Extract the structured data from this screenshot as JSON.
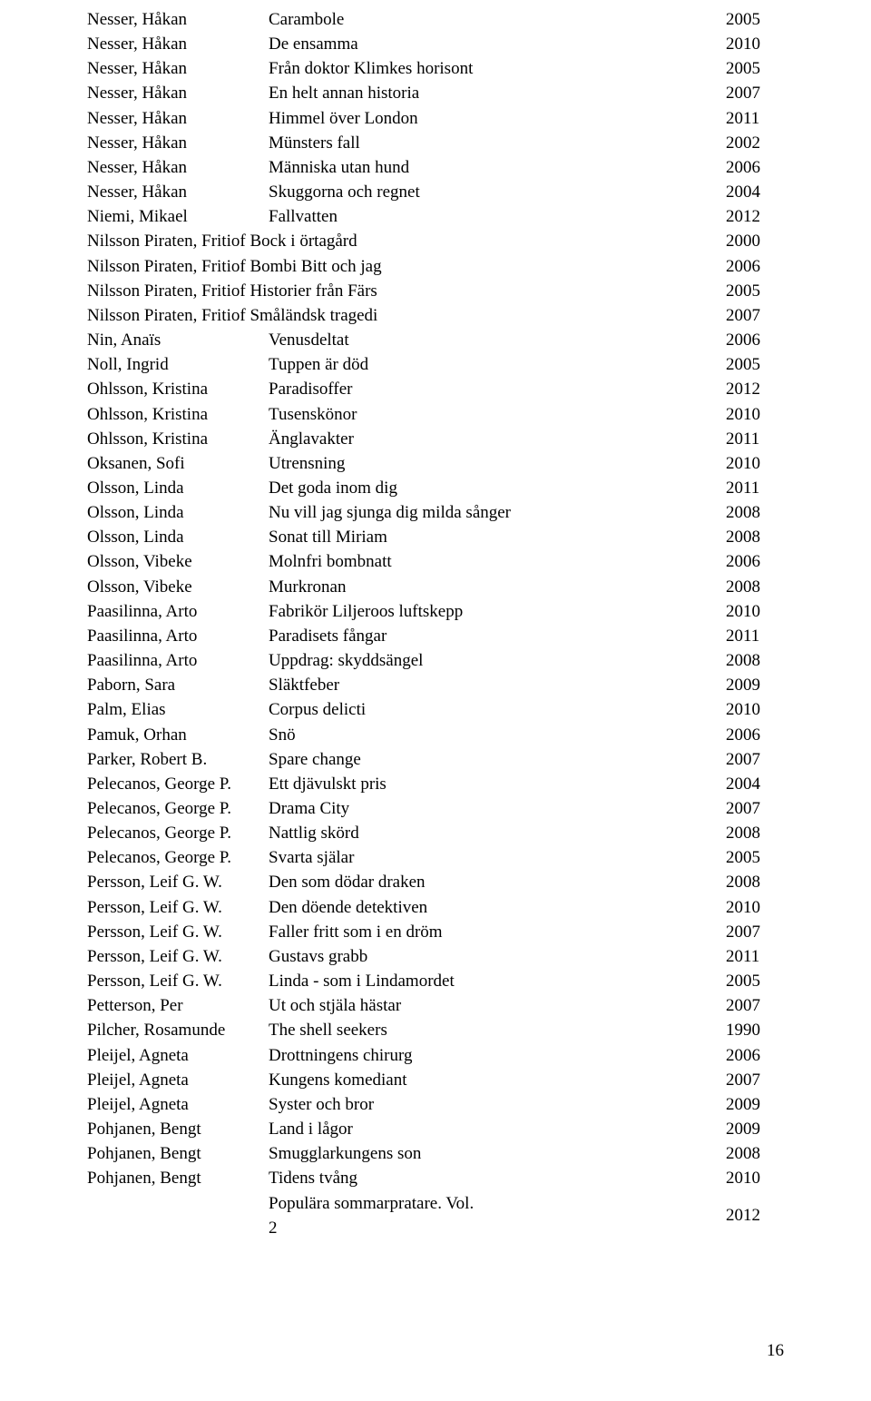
{
  "font": {
    "family": "Times New Roman",
    "size_pt": 14,
    "color": "#000000"
  },
  "background_color": "#ffffff",
  "page_number": "16",
  "rows": [
    {
      "author": "Nesser, Håkan",
      "title": "Carambole",
      "year": "2005"
    },
    {
      "author": "Nesser, Håkan",
      "title": "De ensamma",
      "year": "2010"
    },
    {
      "author": "Nesser, Håkan",
      "title": "Från doktor Klimkes horisont",
      "year": "2005"
    },
    {
      "author": "Nesser, Håkan",
      "title": "En helt annan historia",
      "year": "2007"
    },
    {
      "author": "Nesser, Håkan",
      "title": "Himmel över London",
      "year": "2011"
    },
    {
      "author": "Nesser, Håkan",
      "title": "Münsters fall",
      "year": "2002"
    },
    {
      "author": "Nesser, Håkan",
      "title": "Människa utan hund",
      "year": "2006"
    },
    {
      "author": "Nesser, Håkan",
      "title": "Skuggorna och regnet",
      "year": "2004"
    },
    {
      "author": "Niemi, Mikael",
      "title": "Fallvatten",
      "year": "2012"
    },
    {
      "author": "Nilsson Piraten, Fritiof",
      "title": "Bock i örtagård",
      "year": "2000",
      "combine": true
    },
    {
      "author": "Nilsson Piraten, Fritiof",
      "title": "Bombi Bitt och jag",
      "year": "2006",
      "combine": true
    },
    {
      "author": "Nilsson Piraten, Fritiof",
      "title": "Historier från Färs",
      "year": "2005",
      "combine": true
    },
    {
      "author": "Nilsson Piraten, Fritiof",
      "title": "Småländsk tragedi",
      "year": "2007",
      "combine": true
    },
    {
      "author": "Nin, Anaïs",
      "title": "Venusdeltat",
      "year": "2006"
    },
    {
      "author": "Noll, Ingrid",
      "title": "Tuppen är död",
      "year": "2005"
    },
    {
      "author": "Ohlsson, Kristina",
      "title": "Paradisoffer",
      "year": "2012"
    },
    {
      "author": "Ohlsson, Kristina",
      "title": "Tusenskönor",
      "year": "2010"
    },
    {
      "author": "Ohlsson, Kristina",
      "title": "Änglavakter",
      "year": "2011"
    },
    {
      "author": "Oksanen, Sofi",
      "title": "Utrensning",
      "year": "2010"
    },
    {
      "author": "Olsson, Linda",
      "title": "Det goda inom dig",
      "year": "2011"
    },
    {
      "author": "Olsson, Linda",
      "title": "Nu vill jag sjunga dig milda sånger",
      "year": "2008"
    },
    {
      "author": "Olsson, Linda",
      "title": "Sonat till Miriam",
      "year": "2008"
    },
    {
      "author": "Olsson, Vibeke",
      "title": "Molnfri bombnatt",
      "year": "2006"
    },
    {
      "author": "Olsson, Vibeke",
      "title": "Murkronan",
      "year": "2008"
    },
    {
      "author": "Paasilinna, Arto",
      "title": "Fabrikör Liljeroos luftskepp",
      "year": "2010"
    },
    {
      "author": "Paasilinna, Arto",
      "title": "Paradisets fångar",
      "year": "2011"
    },
    {
      "author": "Paasilinna, Arto",
      "title": "Uppdrag: skyddsängel",
      "year": "2008"
    },
    {
      "author": "Paborn, Sara",
      "title": "Släktfeber",
      "year": "2009"
    },
    {
      "author": "Palm, Elias",
      "title": "Corpus delicti",
      "year": "2010"
    },
    {
      "author": "Pamuk, Orhan",
      "title": "Snö",
      "year": "2006"
    },
    {
      "author": "Parker, Robert B.",
      "title": "Spare change",
      "year": "2007"
    },
    {
      "author": "Pelecanos, George P.",
      "title": "Ett djävulskt pris",
      "year": "2004"
    },
    {
      "author": "Pelecanos, George P.",
      "title": "Drama City",
      "year": "2007"
    },
    {
      "author": "Pelecanos, George P.",
      "title": "Nattlig skörd",
      "year": "2008"
    },
    {
      "author": "Pelecanos, George P.",
      "title": "Svarta själar",
      "year": "2005"
    },
    {
      "author": "Persson, Leif G. W.",
      "title": "Den som dödar draken",
      "year": "2008"
    },
    {
      "author": "Persson, Leif G. W.",
      "title": "Den döende detektiven",
      "year": "2010"
    },
    {
      "author": "Persson, Leif G. W.",
      "title": "Faller fritt som i en dröm",
      "year": "2007"
    },
    {
      "author": "Persson, Leif G. W.",
      "title": "Gustavs grabb",
      "year": "2011"
    },
    {
      "author": "Persson, Leif G. W.",
      "title": "Linda - som i Lindamordet",
      "year": "2005"
    },
    {
      "author": "Petterson, Per",
      "title": "Ut och stjäla hästar",
      "year": "2007"
    },
    {
      "author": "Pilcher, Rosamunde",
      "title": "The shell seekers",
      "year": "1990"
    },
    {
      "author": "Pleijel, Agneta",
      "title": "Drottningens chirurg",
      "year": "2006"
    },
    {
      "author": "Pleijel, Agneta",
      "title": "Kungens komediant",
      "year": "2007"
    },
    {
      "author": "Pleijel, Agneta",
      "title": "Syster och bror",
      "year": "2009"
    },
    {
      "author": "Pohjanen, Bengt",
      "title": "Land i lågor",
      "year": "2009"
    },
    {
      "author": "Pohjanen, Bengt",
      "title": "Smugglarkungens son",
      "year": "2008"
    },
    {
      "author": "Pohjanen, Bengt",
      "title": "Tidens tvång",
      "year": "2010"
    },
    {
      "author": "",
      "title": "Populära sommarpratare. Vol.\n2",
      "year": "2012",
      "title_multiline": true
    }
  ]
}
